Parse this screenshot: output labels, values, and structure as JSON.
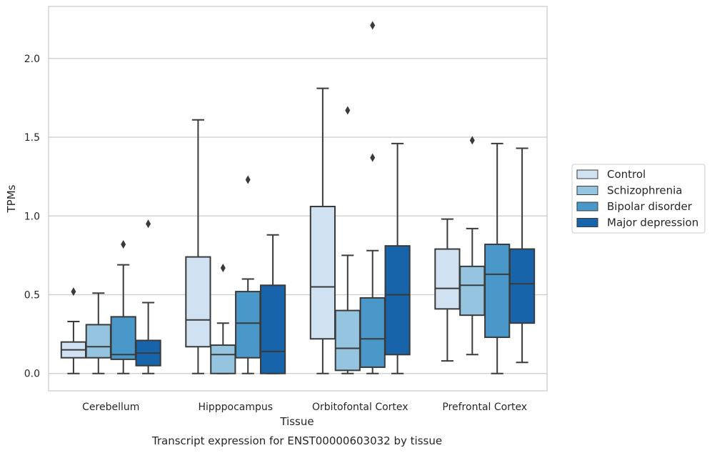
{
  "chart_data": {
    "type": "box",
    "caption": "Transcript expression for ENST00000603032 by tissue",
    "xlabel": "Tissue",
    "ylabel": "TPMs",
    "ylim": [
      -0.11,
      2.33
    ],
    "yticks": [
      0.0,
      0.5,
      1.0,
      1.5,
      2.0
    ],
    "ytick_labels": [
      "0.0",
      "0.5",
      "1.0",
      "1.5",
      "2.0"
    ],
    "grid": "horizontal",
    "legend_position": "right",
    "categories": [
      "Cerebellum",
      "Hipppocampus",
      "Orbitofontal Cortex",
      "Prefrontal Cortex"
    ],
    "series": [
      {
        "name": "Control",
        "color": "#d0e1f2",
        "boxes": [
          {
            "whislo": 0.0,
            "q1": 0.1,
            "med": 0.15,
            "q3": 0.2,
            "whishi": 0.33,
            "fliers": [
              0.52
            ]
          },
          {
            "whislo": 0.0,
            "q1": 0.17,
            "med": 0.34,
            "q3": 0.74,
            "whishi": 1.61,
            "fliers": []
          },
          {
            "whislo": 0.0,
            "q1": 0.22,
            "med": 0.55,
            "q3": 1.06,
            "whishi": 1.81,
            "fliers": []
          },
          {
            "whislo": 0.08,
            "q1": 0.41,
            "med": 0.54,
            "q3": 0.79,
            "whishi": 0.98,
            "fliers": []
          }
        ]
      },
      {
        "name": "Schizophrenia",
        "color": "#94c4df",
        "boxes": [
          {
            "whislo": 0.0,
            "q1": 0.1,
            "med": 0.17,
            "q3": 0.31,
            "whishi": 0.51,
            "fliers": []
          },
          {
            "whislo": 0.0,
            "q1": 0.0,
            "med": 0.12,
            "q3": 0.18,
            "whishi": 0.32,
            "fliers": [
              0.67
            ]
          },
          {
            "whislo": 0.0,
            "q1": 0.02,
            "med": 0.16,
            "q3": 0.4,
            "whishi": 0.75,
            "fliers": [
              1.67
            ]
          },
          {
            "whislo": 0.12,
            "q1": 0.37,
            "med": 0.56,
            "q3": 0.68,
            "whishi": 0.92,
            "fliers": [
              1.48
            ]
          }
        ]
      },
      {
        "name": "Bipolar disorder",
        "color": "#4a98c9",
        "boxes": [
          {
            "whislo": 0.0,
            "q1": 0.09,
            "med": 0.12,
            "q3": 0.36,
            "whishi": 0.69,
            "fliers": [
              0.82
            ]
          },
          {
            "whislo": 0.0,
            "q1": 0.1,
            "med": 0.32,
            "q3": 0.52,
            "whishi": 0.6,
            "fliers": [
              1.23
            ]
          },
          {
            "whislo": 0.0,
            "q1": 0.04,
            "med": 0.22,
            "q3": 0.48,
            "whishi": 0.78,
            "fliers": [
              1.37,
              2.21
            ]
          },
          {
            "whislo": 0.0,
            "q1": 0.23,
            "med": 0.63,
            "q3": 0.82,
            "whishi": 1.46,
            "fliers": []
          }
        ]
      },
      {
        "name": "Major depression",
        "color": "#1764ab",
        "boxes": [
          {
            "whislo": 0.0,
            "q1": 0.05,
            "med": 0.13,
            "q3": 0.21,
            "whishi": 0.45,
            "fliers": [
              0.95
            ]
          },
          {
            "whislo": 0.0,
            "q1": 0.0,
            "med": 0.14,
            "q3": 0.56,
            "whishi": 0.88,
            "fliers": []
          },
          {
            "whislo": 0.0,
            "q1": 0.12,
            "med": 0.5,
            "q3": 0.81,
            "whishi": 1.46,
            "fliers": []
          },
          {
            "whislo": 0.07,
            "q1": 0.32,
            "med": 0.57,
            "q3": 0.79,
            "whishi": 1.43,
            "fliers": []
          }
        ]
      }
    ],
    "colors": {
      "line": "#3a3a3a",
      "grid": "#cccccc",
      "frame": "#cccccc",
      "text": "#262626"
    }
  }
}
